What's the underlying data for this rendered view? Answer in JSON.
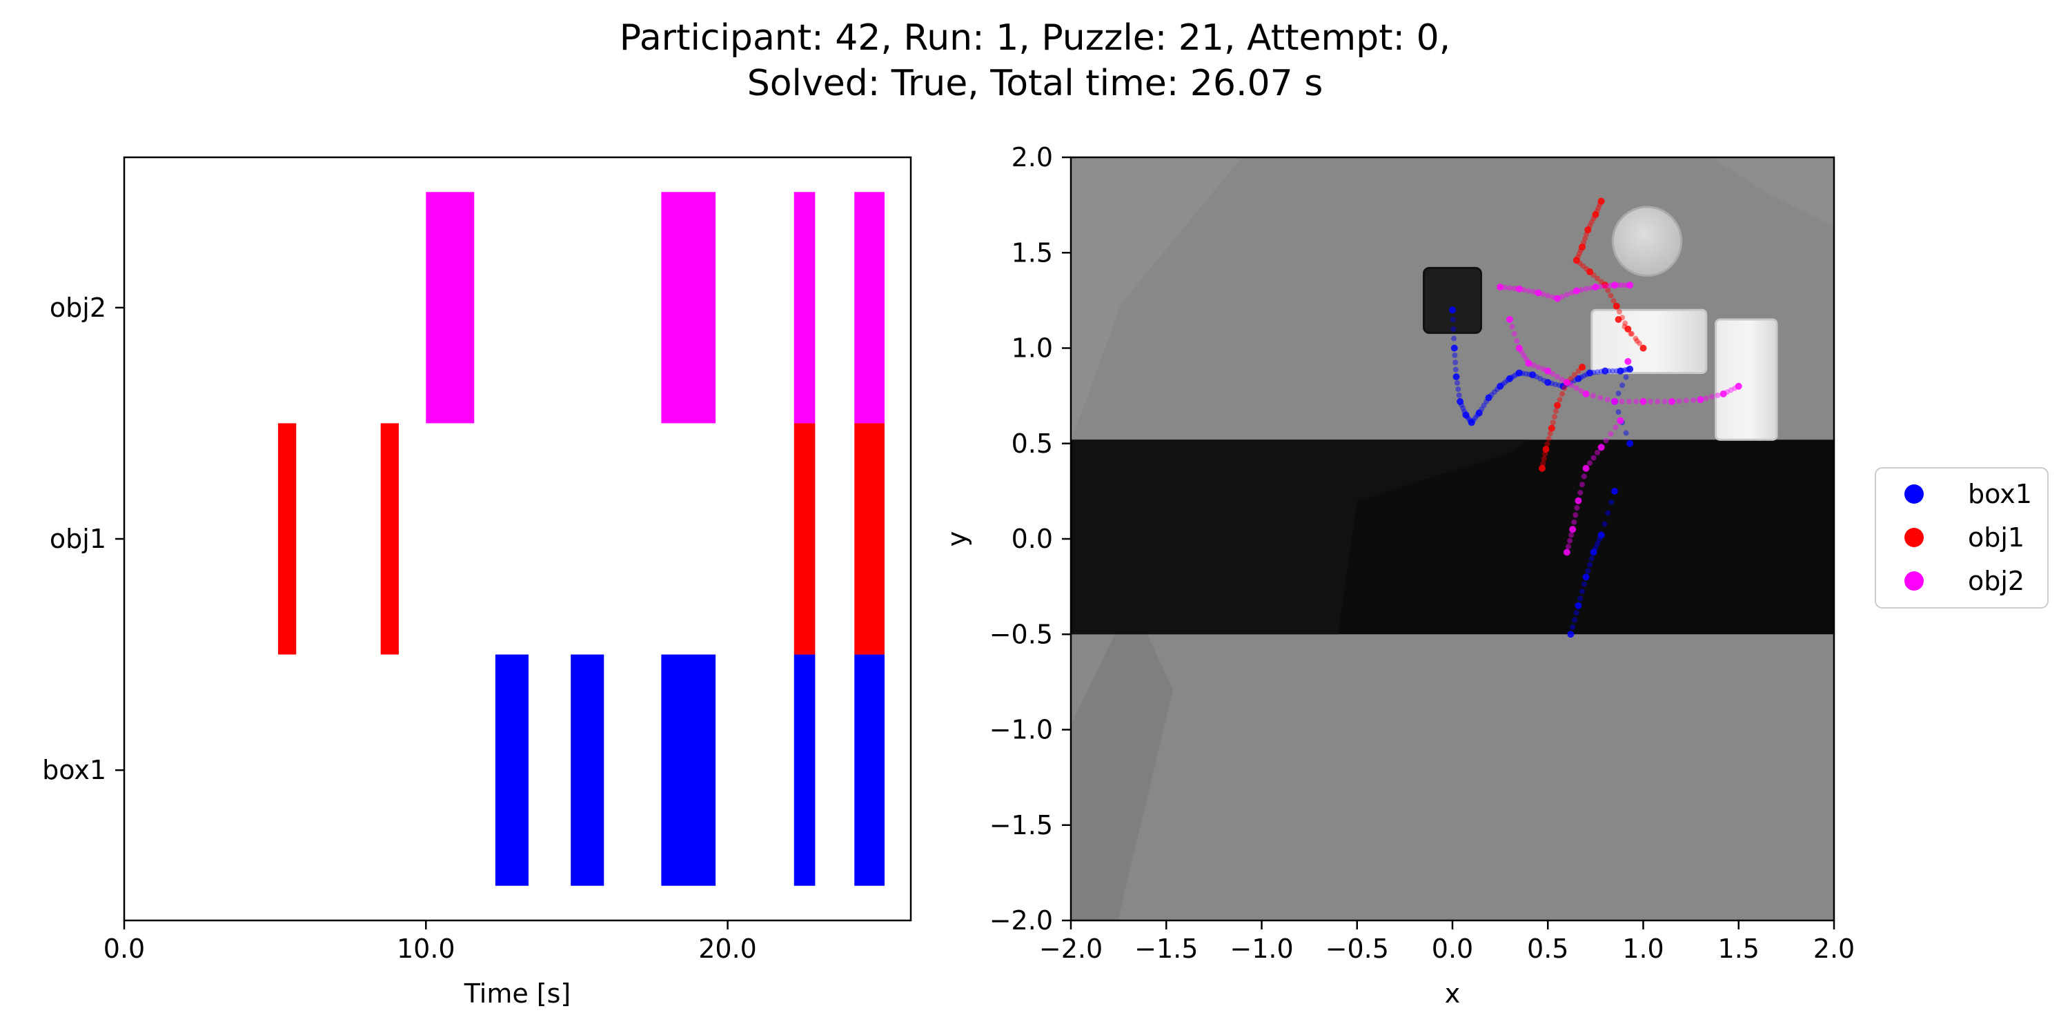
{
  "title": {
    "line1": "Participant: 42, Run: 1, Puzzle: 21, Attempt: 0,",
    "line2": "Solved: True, Total time: 26.07 s"
  },
  "colors": {
    "box1": "#0000ff",
    "obj1": "#ff0000",
    "obj2": "#ff00ff"
  },
  "chart_data": [
    {
      "type": "bar",
      "subtype": "broken-horizontal-timeline",
      "xlabel": "Time [s]",
      "xlim": [
        0,
        26.07
      ],
      "xticks": [
        0,
        10,
        20
      ],
      "xtick_labels": [
        "0.0",
        "10.0",
        "20.0"
      ],
      "categories": [
        "box1",
        "obj1",
        "obj2"
      ],
      "series": [
        {
          "name": "box1",
          "intervals": [
            [
              12.3,
              13.4
            ],
            [
              14.8,
              15.9
            ],
            [
              17.8,
              19.6
            ],
            [
              22.2,
              22.9
            ],
            [
              24.2,
              25.2
            ]
          ]
        },
        {
          "name": "obj1",
          "intervals": [
            [
              5.1,
              5.7
            ],
            [
              8.5,
              9.1
            ],
            [
              22.2,
              22.9
            ],
            [
              24.2,
              25.2
            ]
          ]
        },
        {
          "name": "obj2",
          "intervals": [
            [
              10.0,
              11.6
            ],
            [
              17.8,
              19.6
            ],
            [
              22.2,
              22.9
            ],
            [
              24.2,
              25.2
            ]
          ]
        }
      ]
    },
    {
      "type": "scatter",
      "xlabel": "x",
      "ylabel": "y",
      "xlim": [
        -2,
        2
      ],
      "ylim": [
        -2,
        2
      ],
      "xticks": [
        -2,
        -1.5,
        -1,
        -0.5,
        0,
        0.5,
        1,
        1.5,
        2
      ],
      "xtick_labels": [
        "−2.0",
        "−1.5",
        "−1.0",
        "−0.5",
        "0.0",
        "0.5",
        "1.0",
        "1.5",
        "2.0"
      ],
      "yticks": [
        2,
        1.5,
        1,
        0.5,
        0,
        -0.5,
        -1,
        -1.5,
        -2
      ],
      "ytick_labels": [
        "2.0",
        "1.5",
        "1.0",
        "0.5",
        "0.0",
        "−0.5",
        "−1.0",
        "−1.5",
        "−2.0"
      ],
      "legend": [
        "box1",
        "obj1",
        "obj2"
      ],
      "legend_position": "outside-right",
      "series": [
        {
          "name": "box1",
          "points": [
            [
              0.0,
              1.2
            ],
            [
              0.01,
              1.0
            ],
            [
              0.02,
              0.85
            ],
            [
              0.04,
              0.72
            ],
            [
              0.07,
              0.65
            ],
            [
              0.1,
              0.61
            ],
            [
              0.14,
              0.66
            ],
            [
              0.19,
              0.74
            ],
            [
              0.25,
              0.8
            ],
            [
              0.3,
              0.84
            ],
            [
              0.35,
              0.87
            ],
            [
              0.42,
              0.86
            ],
            [
              0.5,
              0.82
            ],
            [
              0.58,
              0.8
            ],
            [
              0.66,
              0.84
            ],
            [
              0.72,
              0.87
            ],
            [
              0.8,
              0.88
            ],
            [
              0.88,
              0.88
            ],
            [
              0.93,
              0.89
            ],
            [
              0.85,
              0.72
            ],
            [
              0.93,
              0.5
            ],
            [
              0.85,
              0.25
            ],
            [
              0.78,
              0.02
            ],
            [
              0.74,
              -0.07
            ],
            [
              0.7,
              -0.2
            ],
            [
              0.66,
              -0.35
            ],
            [
              0.62,
              -0.5
            ]
          ]
        },
        {
          "name": "obj1",
          "points": [
            [
              0.78,
              1.77
            ],
            [
              0.75,
              1.7
            ],
            [
              0.71,
              1.62
            ],
            [
              0.68,
              1.53
            ],
            [
              0.65,
              1.46
            ],
            [
              0.72,
              1.4
            ],
            [
              0.8,
              1.33
            ],
            [
              0.86,
              1.22
            ],
            [
              0.92,
              1.1
            ],
            [
              1.0,
              1.0
            ],
            [
              0.87,
              1.15
            ],
            [
              0.68,
              0.9
            ],
            [
              0.6,
              0.82
            ],
            [
              0.55,
              0.7
            ],
            [
              0.52,
              0.58
            ],
            [
              0.49,
              0.47
            ],
            [
              0.47,
              0.37
            ]
          ]
        },
        {
          "name": "obj2",
          "points": [
            [
              0.25,
              1.32
            ],
            [
              0.35,
              1.31
            ],
            [
              0.45,
              1.29
            ],
            [
              0.55,
              1.26
            ],
            [
              0.65,
              1.3
            ],
            [
              0.75,
              1.32
            ],
            [
              0.85,
              1.33
            ],
            [
              0.93,
              1.33
            ],
            [
              0.3,
              1.15
            ],
            [
              0.35,
              1.0
            ],
            [
              0.4,
              0.92
            ],
            [
              0.5,
              0.88
            ],
            [
              0.6,
              0.82
            ],
            [
              0.7,
              0.76
            ],
            [
              0.85,
              0.72
            ],
            [
              1.0,
              0.72
            ],
            [
              1.15,
              0.72
            ],
            [
              1.3,
              0.73
            ],
            [
              1.42,
              0.76
            ],
            [
              1.5,
              0.8
            ],
            [
              0.92,
              0.93
            ],
            [
              0.88,
              0.62
            ],
            [
              0.78,
              0.48
            ],
            [
              0.7,
              0.37
            ],
            [
              0.66,
              0.2
            ],
            [
              0.63,
              0.05
            ],
            [
              0.6,
              -0.07
            ]
          ]
        }
      ],
      "background_shapes": [
        {
          "name": "dark-floor-band",
          "x": [
            -2,
            2
          ],
          "y": [
            -0.5,
            0.52
          ]
        },
        {
          "name": "dark-square-object",
          "x": [
            -0.15,
            0.15
          ],
          "y": [
            1.08,
            1.42
          ]
        },
        {
          "name": "gray-circle-object",
          "center": [
            1.02,
            1.56
          ],
          "radius": 0.18
        },
        {
          "name": "white-rectangle-left",
          "x": [
            0.73,
            1.33
          ],
          "y": [
            0.87,
            1.2
          ]
        },
        {
          "name": "white-rectangle-right",
          "x": [
            1.38,
            1.7
          ],
          "y": [
            0.52,
            1.15
          ]
        }
      ]
    }
  ]
}
